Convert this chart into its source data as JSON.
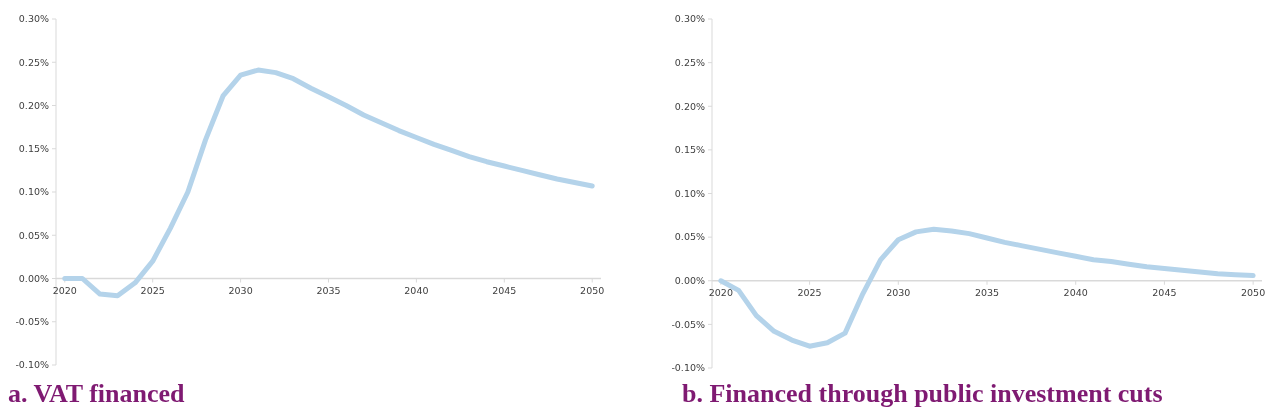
{
  "chart_data": [
    {
      "type": "line",
      "title": "a. VAT financed",
      "x": [
        2020,
        2021,
        2022,
        2023,
        2024,
        2025,
        2026,
        2027,
        2028,
        2029,
        2030,
        2031,
        2032,
        2033,
        2034,
        2035,
        2036,
        2037,
        2038,
        2039,
        2040,
        2041,
        2042,
        2043,
        2044,
        2045,
        2046,
        2047,
        2048,
        2049,
        2050
      ],
      "values": [
        0,
        0,
        -0.018,
        -0.02,
        -0.005,
        0.02,
        0.058,
        0.1,
        0.16,
        0.211,
        0.235,
        0.241,
        0.238,
        0.231,
        0.22,
        0.21,
        0.2,
        0.189,
        0.18,
        0.171,
        0.163,
        0.155,
        0.148,
        0.141,
        0.135,
        0.13,
        0.125,
        0.12,
        0.115,
        0.111,
        0.107
      ],
      "color": "#b4d3ea",
      "xlim": [
        2019.5,
        2050.5
      ],
      "xticks": [
        2020,
        2025,
        2030,
        2035,
        2040,
        2045,
        2050
      ],
      "ylim": [
        -0.1,
        0.3
      ],
      "yticks": [
        {
          "value": -0.1,
          "label": "-0.10%"
        },
        {
          "value": -0.05,
          "label": "-0.05%"
        },
        {
          "value": 0,
          "label": "0.00%"
        },
        {
          "value": 0.05,
          "label": "0.05%"
        },
        {
          "value": 0.1,
          "label": "0.10%"
        },
        {
          "value": 0.15,
          "label": "0.15%"
        },
        {
          "value": 0.2,
          "label": "0.20%"
        },
        {
          "value": 0.25,
          "label": "0.25%"
        },
        {
          "value": 0.3,
          "label": "0.30%"
        }
      ]
    },
    {
      "type": "line",
      "title": "b. Financed through public investment cuts",
      "x": [
        2020,
        2021,
        2022,
        2023,
        2024,
        2025,
        2026,
        2027,
        2028,
        2029,
        2030,
        2031,
        2032,
        2033,
        2034,
        2035,
        2036,
        2037,
        2038,
        2039,
        2040,
        2041,
        2042,
        2043,
        2044,
        2045,
        2046,
        2047,
        2048,
        2049,
        2050
      ],
      "values": [
        0,
        -0.011,
        -0.04,
        -0.058,
        -0.068,
        -0.075,
        -0.071,
        -0.06,
        -0.015,
        0.024,
        0.047,
        0.056,
        0.059,
        0.057,
        0.054,
        0.049,
        0.044,
        0.04,
        0.036,
        0.032,
        0.028,
        0.024,
        0.022,
        0.019,
        0.016,
        0.014,
        0.012,
        0.01,
        0.008,
        0.007,
        0.006
      ],
      "color": "#b4d3ea",
      "xlim": [
        2019.5,
        2050.5
      ],
      "xticks": [
        2020,
        2025,
        2030,
        2035,
        2040,
        2045,
        2050
      ],
      "ylim": [
        -0.1,
        0.3
      ],
      "yticks": [
        {
          "value": -0.1,
          "label": "-0.10%"
        },
        {
          "value": -0.05,
          "label": "-0.05%"
        },
        {
          "value": 0,
          "label": "0.00%"
        },
        {
          "value": 0.05,
          "label": "0.05%"
        },
        {
          "value": 0.1,
          "label": "0.10%"
        },
        {
          "value": 0.15,
          "label": "0.15%"
        },
        {
          "value": 0.2,
          "label": "0.20%"
        },
        {
          "value": 0.25,
          "label": "0.25%"
        },
        {
          "value": 0.3,
          "label": "0.30%"
        }
      ]
    }
  ]
}
